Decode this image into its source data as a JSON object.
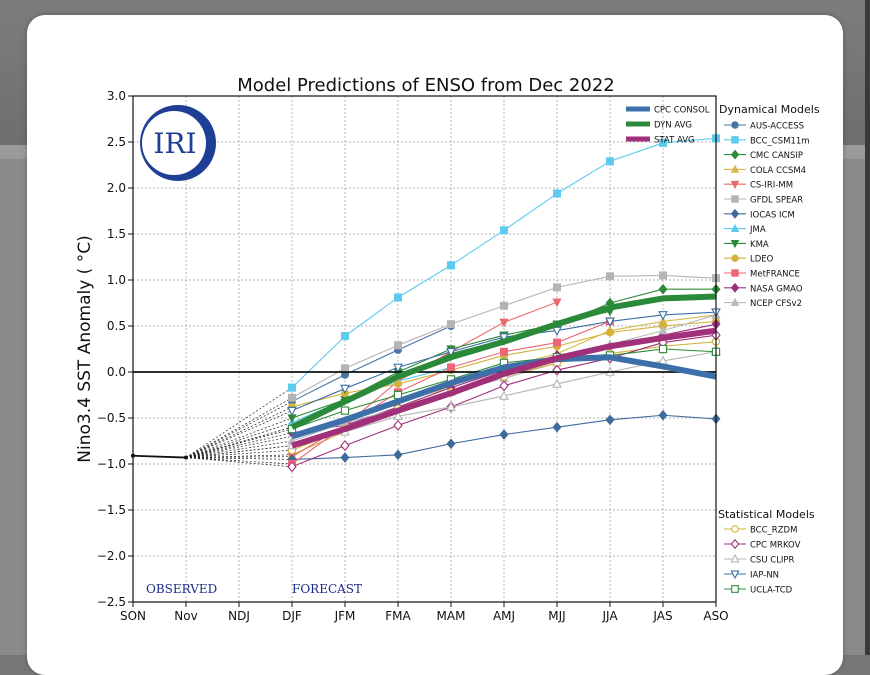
{
  "chart_data": {
    "type": "line",
    "title": "Model Predictions of ENSO from Dec 2022",
    "ylabel": "Nino3.4 SST Anomaly ( °C)",
    "xlabel": "",
    "ylim": [
      -2.5,
      3.0
    ],
    "yticks": [
      "3.0",
      "2.5",
      "2.0",
      "1.5",
      "1.0",
      "0.5",
      "0.0",
      "−0.5",
      "−1.0",
      "−1.5",
      "−2.0",
      "−2.5"
    ],
    "ytick_values": [
      3.0,
      2.5,
      2.0,
      1.5,
      1.0,
      0.5,
      0.0,
      -0.5,
      -1.0,
      -1.5,
      -2.0,
      -2.5
    ],
    "categories": [
      "SON",
      "Nov",
      "NDJ",
      "DJF",
      "JFM",
      "FMA",
      "MAM",
      "AMJ",
      "MJJ",
      "JJA",
      "JAS",
      "ASO"
    ],
    "logo_text": "IRI",
    "observed_label": "OBSERVED",
    "forecast_label": "FORECAST",
    "observed": [
      -0.91,
      -0.93
    ],
    "legend_avg": [
      {
        "name": "CPC CONSOL",
        "color": "#3d6fa8"
      },
      {
        "name": "DYN AVG",
        "color": "#2a8a3a"
      },
      {
        "name": "STAT AVG",
        "color": "#a0307a"
      }
    ],
    "dynamical_title": "Dynamical Models",
    "statistical_title": "Statistical Models",
    "series": [
      {
        "name": "AUS-ACCESS",
        "group": "dyn",
        "color": "#4a74a4",
        "marker": "circle",
        "values": [
          null,
          null,
          null,
          -0.32,
          -0.03,
          0.24,
          0.5,
          null,
          null,
          null,
          null,
          null
        ]
      },
      {
        "name": "BCC_CSM11m",
        "group": "dyn",
        "color": "#5ccbee",
        "marker": "square",
        "values": [
          null,
          null,
          null,
          -0.17,
          0.39,
          0.81,
          1.16,
          1.54,
          1.94,
          2.29,
          2.49,
          2.54
        ]
      },
      {
        "name": "CMC CANSIP",
        "group": "dyn",
        "color": "#2d8a3a",
        "marker": "diamond",
        "values": [
          null,
          null,
          null,
          -0.6,
          -0.3,
          -0.05,
          0.2,
          0.35,
          0.5,
          0.75,
          0.9,
          0.9
        ]
      },
      {
        "name": "COLA CCSM4",
        "group": "dyn",
        "color": "#d8b84a",
        "marker": "triangle-up",
        "values": [
          null,
          null,
          null,
          -0.9,
          -0.65,
          -0.4,
          -0.15,
          0.05,
          0.2,
          0.45,
          0.55,
          0.62
        ]
      },
      {
        "name": "CS-IRI-MM",
        "group": "dyn",
        "color": "#e86a6a",
        "marker": "triangle-down",
        "values": [
          null,
          null,
          null,
          -0.92,
          -0.58,
          -0.1,
          0.22,
          0.54,
          0.76,
          null,
          null,
          null
        ]
      },
      {
        "name": "GFDL SPEAR",
        "group": "dyn",
        "color": "#b4b4b4",
        "marker": "square",
        "values": [
          null,
          null,
          null,
          -0.28,
          0.04,
          0.29,
          0.52,
          0.72,
          0.92,
          1.04,
          1.05,
          1.02
        ]
      },
      {
        "name": "IOCAS ICM",
        "group": "dyn",
        "color": "#3e6a9c",
        "marker": "diamond",
        "values": [
          null,
          null,
          null,
          -0.95,
          -0.93,
          -0.9,
          -0.78,
          -0.68,
          -0.6,
          -0.52,
          -0.47,
          -0.51
        ]
      },
      {
        "name": "JMA",
        "group": "dyn",
        "color": "#5ccbee",
        "marker": "triangle-up",
        "values": [
          null,
          null,
          null,
          -0.55,
          -0.3,
          -0.1,
          0.05,
          null,
          null,
          null,
          null,
          null
        ]
      },
      {
        "name": "KMA",
        "group": "dyn",
        "color": "#2d8a3a",
        "marker": "triangle-down",
        "values": [
          null,
          null,
          null,
          -0.5,
          -0.3,
          0.0,
          0.25,
          0.4,
          0.52,
          0.66,
          null,
          null
        ]
      },
      {
        "name": "LDEO",
        "group": "dyn",
        "color": "#d4b23a",
        "marker": "circle",
        "values": [
          null,
          null,
          null,
          -0.38,
          -0.23,
          -0.13,
          0.02,
          0.18,
          0.28,
          0.43,
          0.5,
          0.55
        ]
      },
      {
        "name": "MetFRANCE",
        "group": "dyn",
        "color": "#ee6677",
        "marker": "square",
        "values": [
          null,
          null,
          null,
          -1.0,
          -0.58,
          -0.22,
          0.05,
          0.22,
          0.32,
          0.55,
          null,
          null
        ]
      },
      {
        "name": "NASA GMAO",
        "group": "dyn",
        "color": "#9b2f80",
        "marker": "diamond",
        "values": [
          null,
          null,
          null,
          -0.66,
          -0.58,
          -0.38,
          -0.17,
          0.02,
          0.18,
          0.28,
          0.4,
          0.52
        ]
      },
      {
        "name": "NCEP CFSv2",
        "group": "dyn",
        "color": "#bbbbbb",
        "marker": "triangle-up",
        "values": [
          null,
          null,
          null,
          -0.75,
          -0.55,
          -0.4,
          -0.22,
          -0.07,
          0.1,
          0.3,
          0.45,
          0.62
        ]
      },
      {
        "name": "BCC_RZDM",
        "group": "stat",
        "color": "#d4b23a",
        "marker": "circle-open",
        "values": [
          null,
          null,
          null,
          -0.85,
          -0.62,
          -0.4,
          -0.22,
          -0.05,
          0.1,
          0.2,
          0.28,
          0.33
        ]
      },
      {
        "name": "CPC MRKOV",
        "group": "stat",
        "color": "#a0307a",
        "marker": "diamond-open",
        "values": [
          null,
          null,
          null,
          -1.03,
          -0.8,
          -0.58,
          -0.38,
          -0.15,
          0.02,
          0.15,
          0.32,
          0.4
        ]
      },
      {
        "name": "CSU CLIPR",
        "group": "stat",
        "color": "#b4b4b4",
        "marker": "triangle-up-open",
        "values": [
          null,
          null,
          null,
          -0.8,
          -0.65,
          -0.48,
          -0.38,
          -0.26,
          -0.13,
          0.0,
          0.12,
          0.22
        ]
      },
      {
        "name": "IAP-NN",
        "group": "stat",
        "color": "#3d6fa8",
        "marker": "triangle-down-open",
        "values": [
          null,
          null,
          null,
          -0.42,
          -0.18,
          0.05,
          0.22,
          0.38,
          0.45,
          0.55,
          0.62,
          0.65
        ]
      },
      {
        "name": "UCLA-TCD",
        "group": "stat",
        "color": "#2d8a3a",
        "marker": "square-open",
        "values": [
          null,
          null,
          null,
          -0.62,
          -0.42,
          -0.25,
          -0.08,
          0.1,
          0.16,
          0.18,
          0.25,
          0.22
        ]
      },
      {
        "name": "CPC CONSOL",
        "group": "avg",
        "color": "#3d6fa8",
        "width": 6,
        "values": [
          null,
          null,
          null,
          -0.7,
          -0.52,
          -0.32,
          -0.12,
          0.05,
          0.14,
          0.16,
          0.06,
          -0.05
        ]
      },
      {
        "name": "DYN AVG",
        "group": "avg",
        "color": "#2a8a3a",
        "width": 6,
        "values": [
          null,
          null,
          null,
          -0.6,
          -0.32,
          -0.05,
          0.16,
          0.33,
          0.52,
          0.7,
          0.8,
          0.82
        ]
      },
      {
        "name": "STAT AVG",
        "group": "avg",
        "color": "#a0307a",
        "width": 6,
        "values": [
          null,
          null,
          null,
          -0.8,
          -0.62,
          -0.42,
          -0.23,
          -0.02,
          0.15,
          0.28,
          0.37,
          0.45
        ]
      }
    ]
  }
}
